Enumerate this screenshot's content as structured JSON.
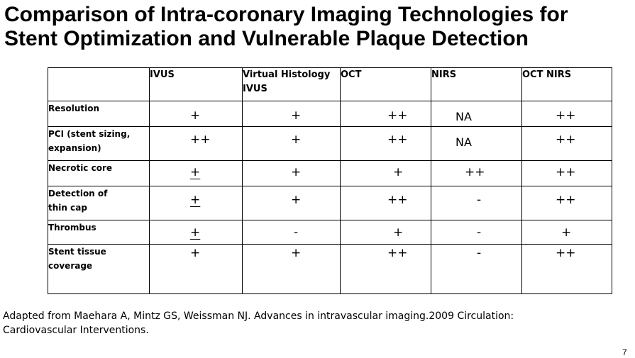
{
  "slide": {
    "title_line1": "Comparison of Intra-coronary Imaging Technologies for",
    "title_line2": "Stent Optimization and Vulnerable Plaque Detection",
    "page_number": "7"
  },
  "table": {
    "headers": [
      "",
      "IVUS",
      "Virtual Histology\nIVUS",
      "OCT",
      "NIRS",
      "OCT NIRS"
    ],
    "rows": [
      {
        "label": "Resolution",
        "values": [
          "+",
          "+",
          "++",
          "NA",
          "++"
        ]
      },
      {
        "label": "PCI (stent sizing,\nexpansion)",
        "values": [
          "++",
          "+",
          "++",
          "NA",
          "++"
        ]
      },
      {
        "label": "Necrotic core",
        "values": [
          "+",
          "+",
          "+",
          "++",
          "++"
        ]
      },
      {
        "label": "Detection of\nthin cap",
        "values": [
          "+",
          "+",
          "++",
          "-",
          "++"
        ]
      },
      {
        "label": "Thrombus",
        "values": [
          "+",
          "-",
          "+",
          "-",
          "+"
        ]
      },
      {
        "label": "Stent tissue\ncoverage",
        "values": [
          "+",
          "+",
          "++",
          "-",
          "++"
        ]
      }
    ]
  },
  "citation": {
    "line1": "Adapted from  Maehara A, Mintz GS, Weissman NJ. Advances in intravascular imaging.2009 Circulation:",
    "line2": "Cardiovascular Interventions."
  }
}
